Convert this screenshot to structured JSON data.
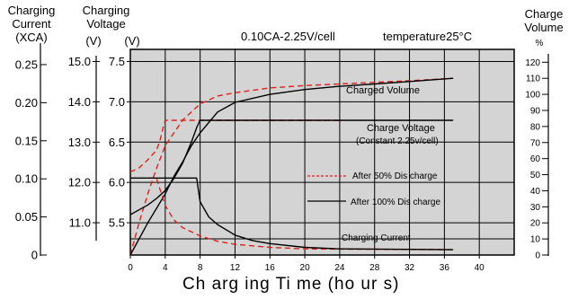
{
  "header": {
    "current_title_line1": "Charging",
    "current_title_line2": "Current",
    "current_unit": "(XCA)",
    "voltage_title_line1": "Charging",
    "voltage_title_line2": "Voltage",
    "voltage_unit_pack": "(V)",
    "voltage_unit_cell": "(V)",
    "volume_title_line1": "Charge",
    "volume_title_line2": "Volume",
    "volume_unit": "%",
    "condition": "0.10CA-2.25V/cell",
    "temperature": "temperature25°C"
  },
  "x_axis_title": "Ch arg ing  Ti me (ho ur s)",
  "annotations": {
    "charged_volume": "Charged Volume",
    "charge_voltage": "Charge Voltage",
    "constant_voltage": "(Constant 2.25v/cell)",
    "legend_50": "After 50% Dis charge",
    "legend_100": "After 100% Dis charge",
    "charging_current": "Charging Current"
  },
  "colors": {
    "after_50": "#e0201b",
    "after_100": "#000000",
    "grid": "#000000",
    "plot_bg": "#d4d4d4"
  },
  "chart_data": {
    "type": "line",
    "title": "0.10CA-2.25V/cell temperature25°C",
    "xlabel": "Ch arg ing  Ti me (ho ur s)",
    "x_ticks": [
      0,
      4,
      8,
      12,
      16,
      20,
      24,
      28,
      32,
      36,
      40
    ],
    "xlim": [
      0,
      44
    ],
    "grid": true,
    "axes": {
      "current": {
        "label": "Charging Current (XCA)",
        "ticks": [
          "0",
          "0.05",
          "0.10",
          "0.15",
          "0.20",
          "0.25"
        ],
        "range": [
          0,
          0.27
        ]
      },
      "pack_voltage": {
        "label": "Charging Voltage (V)",
        "ticks": [
          "11.0",
          "12.0",
          "13.0",
          "14.0",
          "15.0"
        ],
        "range": [
          10.2,
          15.3
        ]
      },
      "cell_voltage": {
        "label": "Charging Voltage (V)",
        "ticks": [
          "5.5",
          "6.0",
          "6.5",
          "7.0",
          "7.5"
        ],
        "range": [
          5.1,
          7.65
        ]
      },
      "charge_volume": {
        "label": "Charge Volume %",
        "ticks": [
          "0",
          "10",
          "20",
          "30",
          "40",
          "50",
          "60",
          "70",
          "80",
          "90",
          "100",
          "110",
          "120"
        ],
        "range": [
          0,
          128
        ]
      }
    },
    "series": [
      {
        "name": "After 50% Dis charge",
        "quantity": "Charged Volume",
        "axis": "charge_volume",
        "style": "dashed",
        "x": [
          0,
          1,
          2,
          3,
          4,
          6,
          8,
          10,
          12,
          16,
          20,
          24,
          28,
          32,
          37
        ],
        "y": [
          0,
          20,
          38,
          54,
          68,
          84,
          94,
          99,
          101,
          104,
          105.5,
          106.5,
          107.5,
          108.5,
          110
        ]
      },
      {
        "name": "After 100% Dis charge",
        "quantity": "Charged Volume",
        "axis": "charge_volume",
        "style": "solid",
        "x": [
          0,
          1,
          2,
          3,
          4,
          5,
          6,
          7,
          8,
          10,
          12,
          16,
          20,
          24,
          28,
          32,
          37
        ],
        "y": [
          0,
          10,
          20,
          29,
          38,
          49,
          58,
          68,
          76,
          89,
          95,
          100,
          103,
          105,
          106.5,
          108,
          110
        ]
      },
      {
        "name": "After 50% Dis charge",
        "quantity": "Charge Voltage",
        "axis": "cell_voltage",
        "style": "dashed",
        "x": [
          0,
          1,
          2,
          3,
          3.4,
          3.8,
          4,
          24
        ],
        "y": [
          6.13,
          6.18,
          6.28,
          6.4,
          6.52,
          6.7,
          6.77,
          6.77
        ]
      },
      {
        "name": "After 100% Dis charge",
        "quantity": "Charge Voltage",
        "axis": "cell_voltage",
        "style": "solid",
        "x": [
          0,
          1,
          2,
          3,
          4,
          5,
          6,
          7,
          7.6,
          8,
          37
        ],
        "y": [
          5.6,
          5.66,
          5.72,
          5.8,
          5.9,
          6.05,
          6.24,
          6.5,
          6.68,
          6.77,
          6.77
        ]
      },
      {
        "name": "After 50% Dis charge",
        "quantity": "Charging Current",
        "axis": "current",
        "style": "dashed",
        "x": [
          0,
          3,
          3.3,
          4,
          5,
          6,
          8,
          10,
          12,
          16,
          20,
          37
        ],
        "y": [
          0.101,
          0.101,
          0.09,
          0.065,
          0.046,
          0.036,
          0.025,
          0.018,
          0.014,
          0.01,
          0.008,
          0.007
        ]
      },
      {
        "name": "After 100% Dis charge",
        "quantity": "Charging Current",
        "axis": "current",
        "style": "solid",
        "x": [
          0,
          7.6,
          7.8,
          8,
          9,
          10,
          12,
          14,
          16,
          20,
          24,
          37
        ],
        "y": [
          0.101,
          0.101,
          0.085,
          0.07,
          0.05,
          0.04,
          0.026,
          0.019,
          0.015,
          0.01,
          0.008,
          0.007
        ]
      }
    ]
  }
}
